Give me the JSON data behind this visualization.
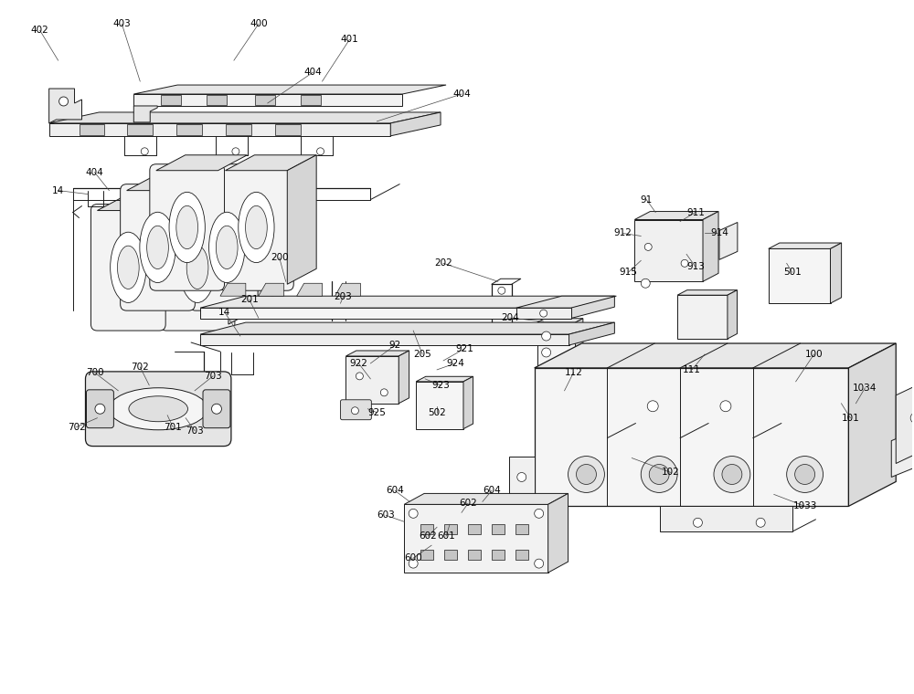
{
  "background_color": "#ffffff",
  "line_color": "#1a1a1a",
  "label_color": "#000000",
  "label_fontsize": 7.5,
  "fig_width": 10.0,
  "fig_height": 7.6,
  "dpi": 100
}
